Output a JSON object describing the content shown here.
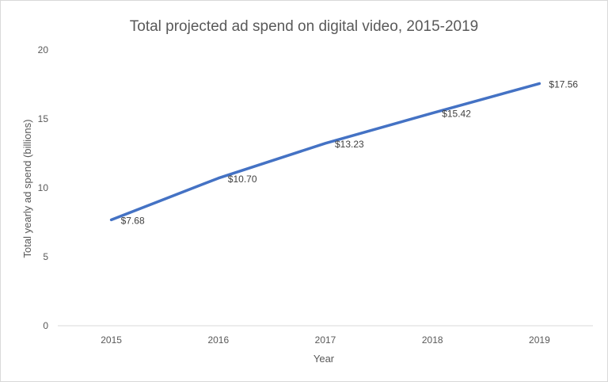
{
  "chart_data": {
    "type": "line",
    "title": "Total projected ad spend on digital video, 2015-2019",
    "xlabel": "Year",
    "ylabel": "Total yearly ad spend (billions)",
    "categories": [
      "2015",
      "2016",
      "2017",
      "2018",
      "2019"
    ],
    "series": [
      {
        "name": "Total projected ad spend",
        "values": [
          7.68,
          10.7,
          13.23,
          15.42,
          17.56
        ],
        "labels": [
          "$7.68",
          "$10.70",
          "$13.23",
          "$15.42",
          "$17.56"
        ],
        "color": "#4472c4"
      }
    ],
    "ylim": [
      0,
      20
    ],
    "yticks": [
      "0",
      "5",
      "10",
      "15",
      "20"
    ],
    "grid": false,
    "legend": "none"
  }
}
